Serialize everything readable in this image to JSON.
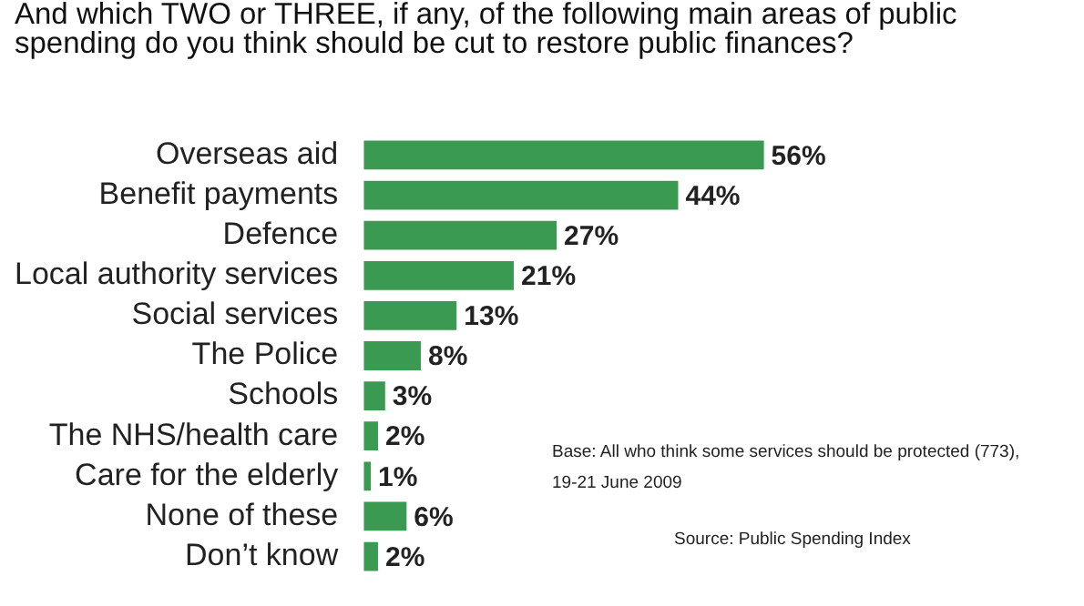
{
  "chart_data": {
    "type": "bar",
    "orientation": "horizontal",
    "title": "And which TWO or THREE, if any, of the following main areas of public spending do you think should be cut to restore public finances?",
    "categories": [
      "Overseas aid",
      "Benefit payments",
      "Defence",
      "Local authority services",
      "Social services",
      "The Police",
      "Schools",
      "The NHS/health care",
      "Care for the elderly",
      "None of these",
      "Don’t know"
    ],
    "values": [
      56,
      44,
      27,
      21,
      13,
      8,
      3,
      2,
      1,
      6,
      2
    ],
    "value_labels": [
      "56%",
      "44%",
      "27%",
      "21%",
      "13%",
      "8%",
      "3%",
      "2%",
      "1%",
      "6%",
      "2%"
    ],
    "color": "#3a9a52",
    "tick_labels": "y",
    "annotations": [
      "Base: All who think some services should be protected (773),",
      "19-21 June 2009",
      "Source: Public Spending Index"
    ]
  }
}
